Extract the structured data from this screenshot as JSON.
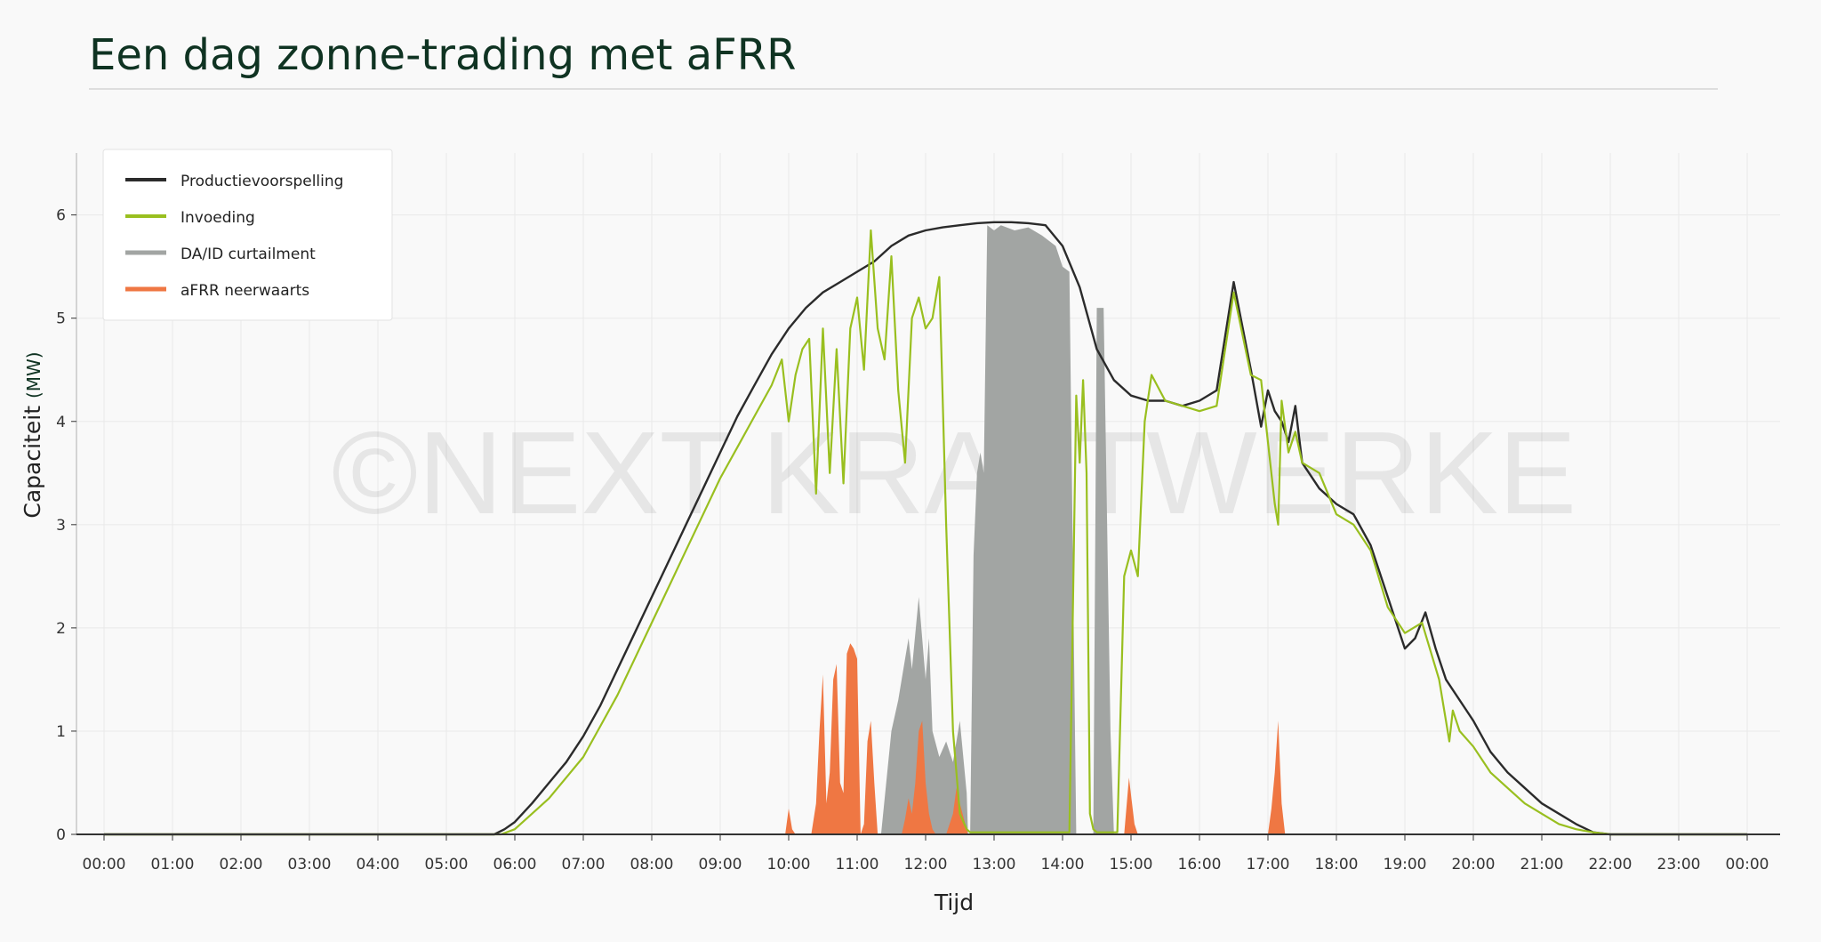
{
  "title": "Een dag zonne-trading met aFRR",
  "watermark": "©NEXT KRAFTWERKE",
  "chart_data": {
    "type": "line",
    "title": "Een dag zonne-trading met aFRR",
    "xlabel": "Tijd",
    "ylabel": "Capaciteit",
    "ylabel_unit": "(MW)",
    "x_unit": "hour of day",
    "xlim": [
      -0.2,
      24.4
    ],
    "ylim": [
      0,
      6.6
    ],
    "y_ticks": [
      0,
      1,
      2,
      3,
      4,
      5,
      6
    ],
    "x_ticks": [
      "00:00",
      "01:00",
      "02:00",
      "03:00",
      "04:00",
      "05:00",
      "06:00",
      "07:00",
      "08:00",
      "09:00",
      "10:00",
      "11:00",
      "12:00",
      "13:00",
      "14:00",
      "15:00",
      "16:00",
      "17:00",
      "18:00",
      "19:00",
      "20:00",
      "21:00",
      "22:00",
      "23:00",
      "00:00"
    ],
    "grid": true,
    "legend": "top-left",
    "series": [
      {
        "name": "Productievoorspelling",
        "type": "line",
        "color": "#2b2b2b",
        "x": [
          0,
          5.7,
          5.85,
          6.0,
          6.25,
          6.5,
          6.75,
          7.0,
          7.25,
          7.5,
          7.75,
          8.0,
          8.25,
          8.5,
          8.75,
          9.0,
          9.25,
          9.5,
          9.75,
          10.0,
          10.25,
          10.5,
          10.75,
          11.0,
          11.25,
          11.5,
          11.75,
          12.0,
          12.25,
          12.5,
          12.75,
          13.0,
          13.25,
          13.5,
          13.75,
          14.0,
          14.25,
          14.5,
          14.75,
          15.0,
          15.25,
          15.5,
          15.75,
          16.0,
          16.25,
          16.5,
          16.75,
          16.9,
          17.0,
          17.1,
          17.2,
          17.3,
          17.4,
          17.5,
          17.75,
          18.0,
          18.25,
          18.5,
          18.75,
          19.0,
          19.15,
          19.3,
          19.45,
          19.6,
          20.0,
          20.25,
          20.5,
          20.75,
          21.0,
          21.25,
          21.5,
          21.75,
          22.0,
          24.0
        ],
        "y": [
          0,
          0,
          0.05,
          0.12,
          0.3,
          0.5,
          0.7,
          0.95,
          1.25,
          1.6,
          1.95,
          2.3,
          2.65,
          3.0,
          3.35,
          3.7,
          4.05,
          4.35,
          4.65,
          4.9,
          5.1,
          5.25,
          5.35,
          5.45,
          5.55,
          5.7,
          5.8,
          5.85,
          5.88,
          5.9,
          5.92,
          5.93,
          5.93,
          5.92,
          5.9,
          5.7,
          5.3,
          4.7,
          4.4,
          4.25,
          4.2,
          4.2,
          4.15,
          4.2,
          4.3,
          5.35,
          4.5,
          3.95,
          4.3,
          4.1,
          4.0,
          3.8,
          4.15,
          3.6,
          3.35,
          3.2,
          3.1,
          2.8,
          2.3,
          1.8,
          1.9,
          2.15,
          1.8,
          1.5,
          1.1,
          0.8,
          0.6,
          0.45,
          0.3,
          0.2,
          0.1,
          0.02,
          0,
          0
        ]
      },
      {
        "name": "Invoeding",
        "type": "line",
        "color": "#99bf1f",
        "x": [
          0,
          5.8,
          6.0,
          6.25,
          6.5,
          6.75,
          7.0,
          7.25,
          7.5,
          7.75,
          8.0,
          8.25,
          8.5,
          8.75,
          9.0,
          9.25,
          9.5,
          9.75,
          9.9,
          10.0,
          10.1,
          10.2,
          10.3,
          10.4,
          10.5,
          10.6,
          10.7,
          10.8,
          10.9,
          11.0,
          11.1,
          11.2,
          11.3,
          11.4,
          11.5,
          11.6,
          11.7,
          11.8,
          11.9,
          12.0,
          12.1,
          12.2,
          12.3,
          12.4,
          12.5,
          12.6,
          12.65,
          12.7,
          12.75,
          12.8,
          12.9,
          13.0,
          13.1,
          13.3,
          13.6,
          13.9,
          14.1,
          14.2,
          14.25,
          14.3,
          14.35,
          14.4,
          14.45,
          14.5,
          14.6,
          14.7,
          14.8,
          14.9,
          15.0,
          15.1,
          15.2,
          15.3,
          15.5,
          15.75,
          16.0,
          16.25,
          16.5,
          16.75,
          16.9,
          17.0,
          17.1,
          17.15,
          17.2,
          17.3,
          17.4,
          17.5,
          17.75,
          18.0,
          18.25,
          18.5,
          18.75,
          19.0,
          19.25,
          19.5,
          19.6,
          19.65,
          19.7,
          19.8,
          20.0,
          20.25,
          20.5,
          20.75,
          21.0,
          21.25,
          21.5,
          21.75,
          22.0,
          24.0
        ],
        "y": [
          0,
          0,
          0.05,
          0.2,
          0.35,
          0.55,
          0.75,
          1.05,
          1.35,
          1.7,
          2.05,
          2.4,
          2.75,
          3.1,
          3.45,
          3.75,
          4.05,
          4.35,
          4.6,
          4.0,
          4.45,
          4.7,
          4.8,
          3.3,
          4.9,
          3.5,
          4.7,
          3.4,
          4.9,
          5.2,
          4.5,
          5.85,
          4.9,
          4.6,
          5.6,
          4.3,
          3.6,
          5.0,
          5.2,
          4.9,
          5.0,
          5.4,
          3.0,
          1.0,
          0.2,
          0.05,
          0.02,
          0.02,
          0.02,
          0.02,
          0.02,
          0.02,
          0.02,
          0.02,
          0.02,
          0.02,
          0.02,
          4.25,
          3.6,
          4.4,
          3.5,
          0.2,
          0.05,
          0.02,
          0.02,
          0.02,
          0.02,
          2.5,
          2.75,
          2.5,
          4.0,
          4.45,
          4.2,
          4.15,
          4.1,
          4.15,
          5.25,
          4.45,
          4.4,
          3.8,
          3.2,
          3.0,
          4.2,
          3.7,
          3.9,
          3.6,
          3.5,
          3.1,
          3.0,
          2.75,
          2.2,
          1.95,
          2.05,
          1.5,
          1.1,
          0.9,
          1.2,
          1.0,
          0.85,
          0.6,
          0.45,
          0.3,
          0.2,
          0.1,
          0.05,
          0.02,
          0,
          0
        ]
      },
      {
        "name": "DA/ID curtailment",
        "type": "area",
        "color": "#a2a5a3",
        "x": [
          11.35,
          11.5,
          11.6,
          11.7,
          11.75,
          11.8,
          11.9,
          12.0,
          12.05,
          12.1,
          12.2,
          12.3,
          12.4,
          12.5,
          12.6,
          12.62,
          12.65,
          12.7,
          12.75,
          12.8,
          12.85,
          12.9,
          13.0,
          13.1,
          13.3,
          13.5,
          13.7,
          13.9,
          14.0,
          14.1,
          14.2,
          14.22,
          14.3,
          14.4,
          14.45,
          14.5,
          14.6,
          14.7,
          14.75,
          14.8
        ],
        "y": [
          0,
          1.0,
          1.3,
          1.7,
          1.9,
          1.6,
          2.3,
          1.5,
          1.9,
          1.0,
          0.75,
          0.9,
          0.7,
          1.1,
          0.4,
          0,
          0,
          2.7,
          3.5,
          3.7,
          3.5,
          5.9,
          5.85,
          5.9,
          5.85,
          5.88,
          5.8,
          5.7,
          5.5,
          5.45,
          0,
          0,
          0,
          0,
          0,
          5.1,
          5.1,
          1.0,
          0,
          0
        ]
      },
      {
        "name": "aFRR neerwaarts",
        "type": "area",
        "color": "#ef7743",
        "x": [
          9.95,
          10.0,
          10.05,
          10.1,
          10.33,
          10.4,
          10.45,
          10.5,
          10.55,
          10.6,
          10.65,
          10.7,
          10.75,
          10.8,
          10.85,
          10.9,
          10.95,
          11.0,
          11.05,
          11.1,
          11.15,
          11.2,
          11.25,
          11.3,
          11.35,
          11.65,
          11.7,
          11.75,
          11.8,
          11.85,
          11.9,
          11.95,
          12.0,
          12.05,
          12.1,
          12.15,
          12.3,
          12.4,
          12.45,
          12.5,
          12.6,
          12.62,
          14.9,
          14.97,
          15.05,
          15.1,
          17.0,
          17.05,
          17.1,
          17.15,
          17.2,
          17.25
        ],
        "y": [
          0,
          0.25,
          0.05,
          0,
          0,
          0.3,
          1.0,
          1.55,
          0.3,
          0.6,
          1.5,
          1.65,
          0.5,
          0.4,
          1.75,
          1.85,
          1.8,
          1.7,
          0.0,
          0.1,
          0.9,
          1.1,
          0.5,
          0,
          0,
          0,
          0.15,
          0.35,
          0.2,
          0.5,
          1.0,
          1.1,
          0.5,
          0.2,
          0.05,
          0,
          0,
          0.2,
          0.45,
          0.3,
          0.05,
          0,
          0,
          0.55,
          0.1,
          0,
          0,
          0.25,
          0.6,
          1.1,
          0.3,
          0
        ]
      }
    ]
  }
}
